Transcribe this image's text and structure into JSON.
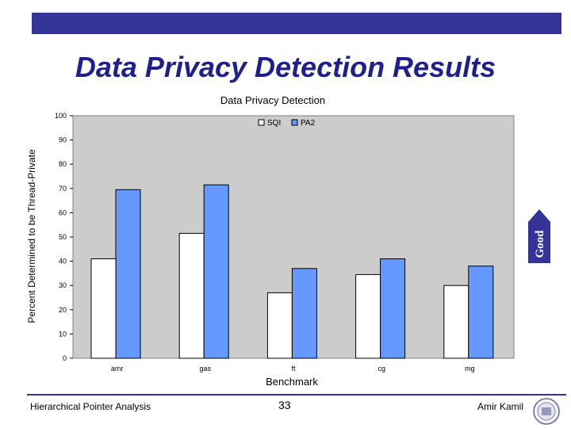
{
  "slide": {
    "title": "Data Privacy Detection Results",
    "footer_left": "Hierarchical Pointer Analysis",
    "page_number": "33",
    "author": "Amir Kamil",
    "arrow_label": "Good",
    "colors": {
      "bar_top": "#333399",
      "title": "#1f1f8f",
      "arrow": "#333399"
    }
  },
  "chart_data": {
    "type": "bar",
    "title": "Data Privacy Detection",
    "xlabel": "Benchmark",
    "ylabel": "Percent Determined to be Thread-Private",
    "categories": [
      "amr",
      "gas",
      "ft",
      "cg",
      "mg"
    ],
    "series": [
      {
        "name": "SQI",
        "values": [
          41,
          51.5,
          27,
          34.5,
          30
        ],
        "color": "#ffffff"
      },
      {
        "name": "PA2",
        "values": [
          69.5,
          71.5,
          37,
          41,
          38
        ],
        "color": "#6699ff"
      }
    ],
    "ylim": [
      0,
      100
    ],
    "yticks": [
      0,
      10,
      20,
      30,
      40,
      50,
      60,
      70,
      80,
      90,
      100
    ],
    "grid": false,
    "legend": "top"
  }
}
